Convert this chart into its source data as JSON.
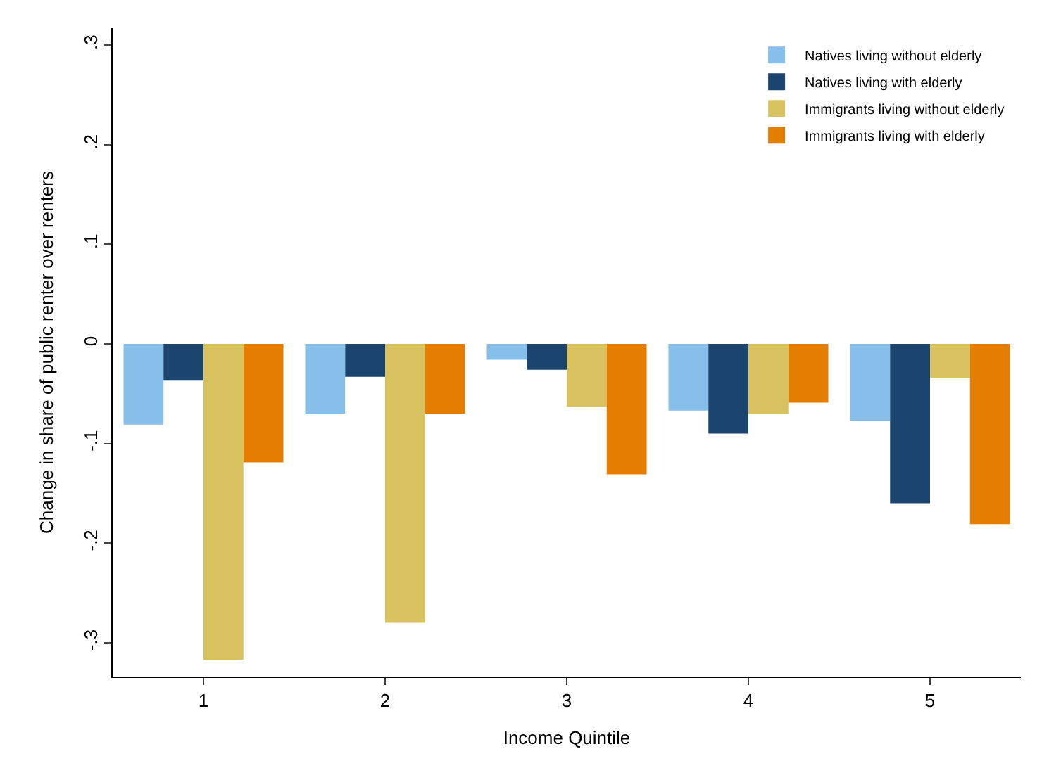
{
  "chart_data": {
    "type": "bar",
    "xlabel": "Income Quintile",
    "ylabel": "Change in share of public renter over renters",
    "categories": [
      "1",
      "2",
      "3",
      "4",
      "5"
    ],
    "series": [
      {
        "name": "Natives living without elderly",
        "color": "#86c0ea",
        "values": [
          -0.081,
          -0.07,
          -0.016,
          -0.067,
          -0.077
        ]
      },
      {
        "name": "Natives living with elderly",
        "color": "#1b456e",
        "values": [
          -0.037,
          -0.033,
          -0.026,
          -0.09,
          -0.16
        ]
      },
      {
        "name": "Immigrants living without elderly",
        "color": "#d8c25f",
        "values": [
          -0.317,
          -0.28,
          -0.063,
          -0.07,
          -0.034
        ]
      },
      {
        "name": "Immigrants living with elderly",
        "color": "#e37e00",
        "values": [
          -0.119,
          -0.07,
          -0.131,
          -0.059,
          -0.181
        ]
      }
    ],
    "ylim": [
      -0.334,
      0.317
    ],
    "yticks": [
      {
        "value": -0.3,
        "label": "-.3"
      },
      {
        "value": -0.2,
        "label": "-.2"
      },
      {
        "value": -0.1,
        "label": "-.1"
      },
      0,
      {
        "value": 0.1,
        "label": ".1"
      },
      {
        "value": 0.2,
        "label": ".2"
      },
      {
        "value": 0.3,
        "label": ".3"
      }
    ],
    "grid": false,
    "legend": "top right"
  }
}
